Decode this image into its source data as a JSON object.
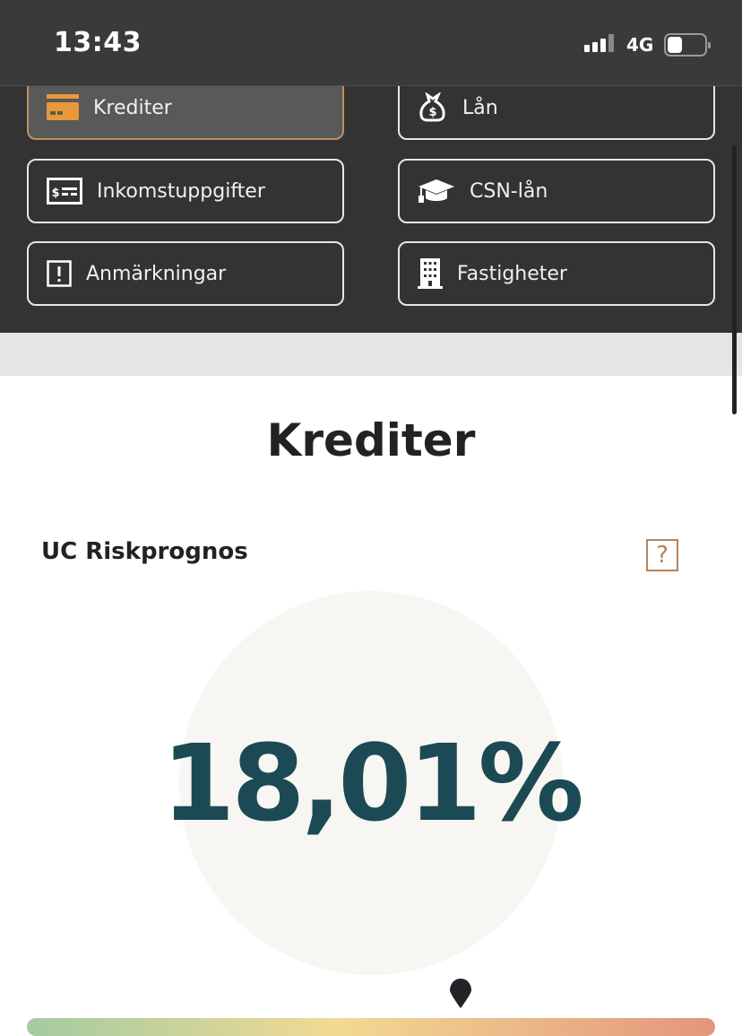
{
  "status_bar": {
    "time": "13:43",
    "network": "4G",
    "battery_level": 0.4
  },
  "nav": {
    "items": [
      {
        "label": "Krediter",
        "icon": "credit-card-icon",
        "active": true
      },
      {
        "label": "Lån",
        "icon": "money-bag-icon",
        "active": false
      },
      {
        "label": "Inkomstuppgifter",
        "icon": "income-card-icon",
        "active": false
      },
      {
        "label": "CSN-lån",
        "icon": "graduation-cap-icon",
        "active": false
      },
      {
        "label": "Anmärkningar",
        "icon": "exclamation-icon",
        "active": false
      },
      {
        "label": "Fastigheter",
        "icon": "building-icon",
        "active": false
      }
    ]
  },
  "section": {
    "title": "Krediter",
    "subtitle": "UC Riskprognos",
    "help": "?",
    "value": "18,01%",
    "risk_scale_position": 0.63
  },
  "colors": {
    "accent": "#e8993a",
    "value": "#1c4a54",
    "help": "#b5835a"
  }
}
